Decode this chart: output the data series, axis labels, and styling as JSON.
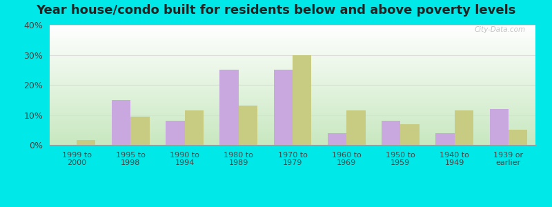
{
  "title": "Year house/condo built for residents below and above poverty levels",
  "categories": [
    "1999 to\n2000",
    "1995 to\n1998",
    "1990 to\n1994",
    "1980 to\n1989",
    "1970 to\n1979",
    "1960 to\n1969",
    "1950 to\n1959",
    "1940 to\n1949",
    "1939 or\nearlier"
  ],
  "below_poverty": [
    0,
    15,
    8,
    25,
    25,
    4,
    8,
    4,
    12
  ],
  "above_poverty": [
    1.5,
    9.5,
    11.5,
    13,
    30,
    11.5,
    7,
    11.5,
    5
  ],
  "below_color": "#c9a8e0",
  "above_color": "#c8cc82",
  "ylim": [
    0,
    40
  ],
  "yticks": [
    0,
    10,
    20,
    30,
    40
  ],
  "outer_background": "#00e8e8",
  "gradient_top": "#ffffff",
  "gradient_bottom": "#c8e8c0",
  "grid_color": "#dddddd",
  "title_fontsize": 13,
  "bar_width": 0.35,
  "watermark_text": "City-Data.com"
}
